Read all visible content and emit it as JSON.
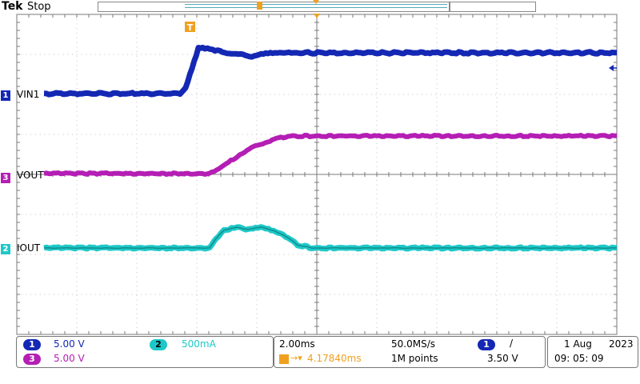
{
  "header": {
    "brand": "Tek",
    "acq_state": "Stop"
  },
  "colors": {
    "ch1": "#1428b4",
    "ch2": "#1ec8c8",
    "ch3": "#b41eb4",
    "trigger": "#f0a020",
    "grid": "#bfbfbf"
  },
  "traces": {
    "ch1": {
      "label": "VIN1",
      "number": "1"
    },
    "ch2": {
      "label": "IOUT",
      "number": "2"
    },
    "ch3": {
      "label": "VOUT",
      "number": "3"
    }
  },
  "trigger_marker_icon": "T",
  "status": {
    "channels": {
      "ch1_num": "1",
      "ch1_scale": "5.00 V",
      "ch2_num": "2",
      "ch2_scale": "500mA",
      "ch3_num": "3",
      "ch3_scale": "5.00 V"
    },
    "timebase": {
      "time_per_div": "2.00ms",
      "sample_rate": "50.0MS/s",
      "trigger_pos": "4.17840ms",
      "record_length": "1M points"
    },
    "trigger": {
      "source_num": "1",
      "slope_icon": "/",
      "level": "3.50 V"
    },
    "datetime": {
      "date_day": "1 Aug",
      "year": "2023",
      "time": "09: 05: 09"
    }
  }
}
